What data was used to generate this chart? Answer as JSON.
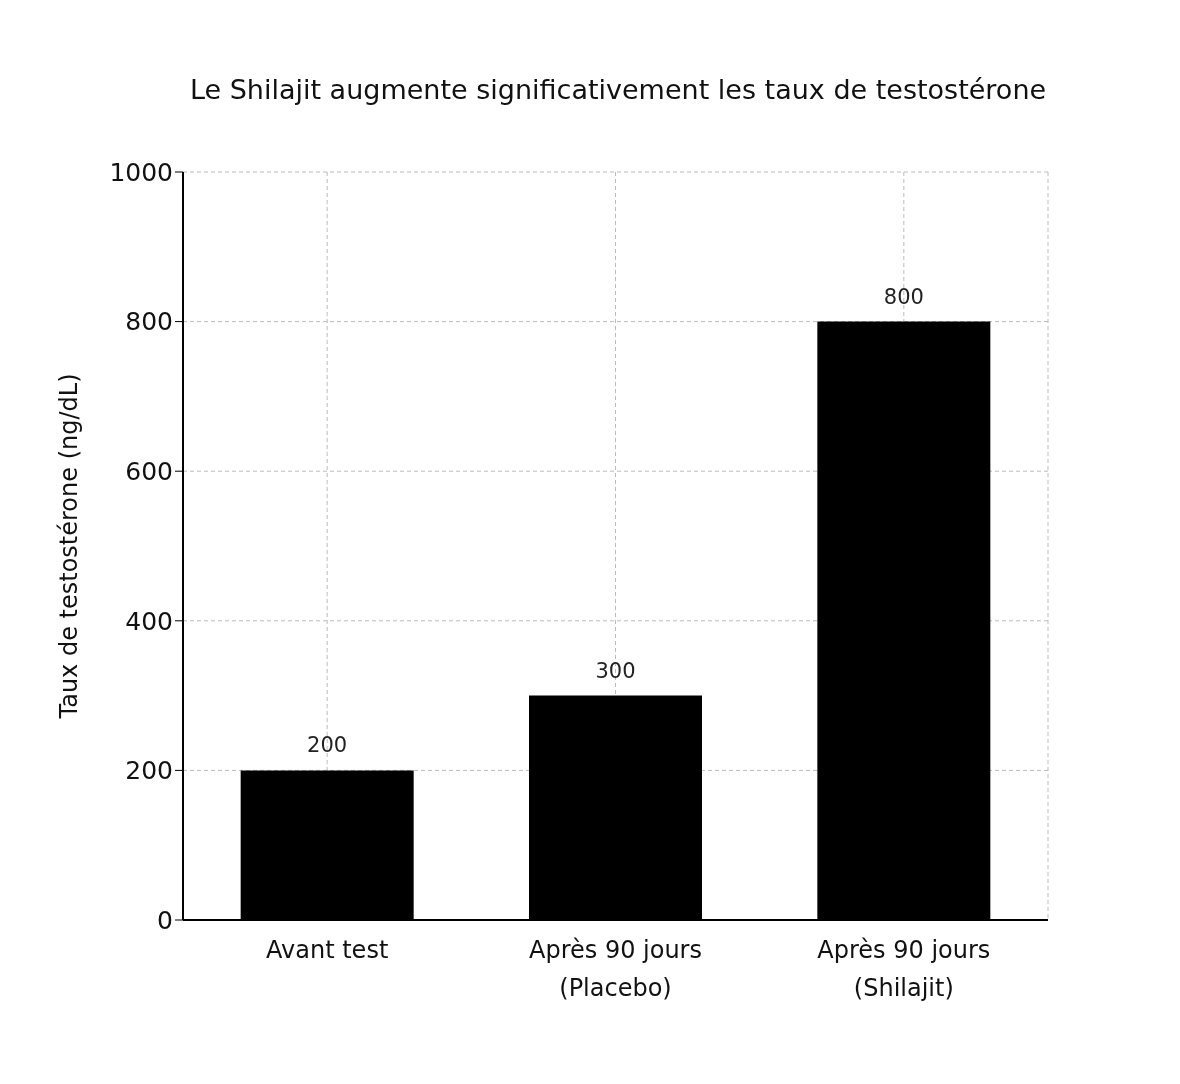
{
  "chart_data": {
    "type": "bar",
    "title": "Le Shilajit augmente significativement les taux de testostérone",
    "ylabel": "Taux de testostérone (ng/dL)",
    "categories": [
      "Avant test",
      "Après 90 jours\n(Placebo)",
      "Après 90 jours\n(Shilajit)"
    ],
    "values": [
      200,
      300,
      800
    ],
    "color": "#000000",
    "ylim": [
      0,
      1000
    ],
    "yticks": [
      0,
      200,
      400,
      600,
      800,
      1000
    ],
    "grid": true,
    "data_labels": true
  }
}
